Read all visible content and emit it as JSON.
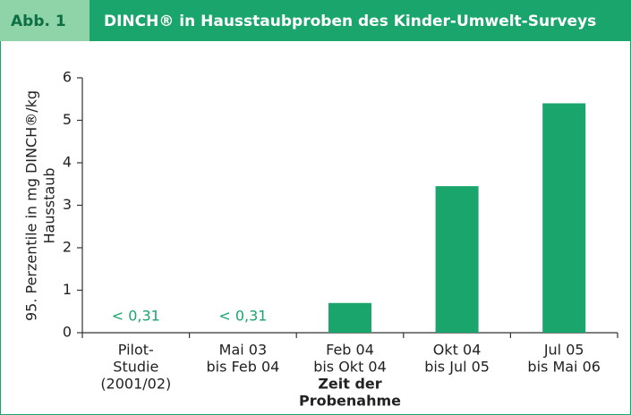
{
  "chart_data": {
    "type": "bar",
    "figure_label": "Abb. 1",
    "title": "DINCH® in Hausstaubproben des Kinder-Umwelt-Surveys",
    "ylabel": [
      "95. Perzentile in mg DINCH®/kg",
      "Hausstaub"
    ],
    "xlabel": [
      "Zeit der",
      "Probenahme"
    ],
    "categories": [
      [
        "Pilot-",
        "Studie",
        "(2001/02)"
      ],
      [
        "Mai 03",
        "bis Feb 04"
      ],
      [
        "Feb 04",
        "bis Okt 04"
      ],
      [
        "Okt 04",
        "bis Jul 05"
      ],
      [
        "Jul 05",
        "bis Mai 06"
      ]
    ],
    "values": [
      null,
      null,
      0.7,
      3.45,
      5.4
    ],
    "value_labels": [
      "< 0,31",
      "< 0,31",
      null,
      null,
      null
    ],
    "color": "#1aa56c",
    "ylim": [
      0,
      6
    ],
    "yticks": [
      0,
      1,
      2,
      3,
      4,
      5,
      6
    ]
  }
}
